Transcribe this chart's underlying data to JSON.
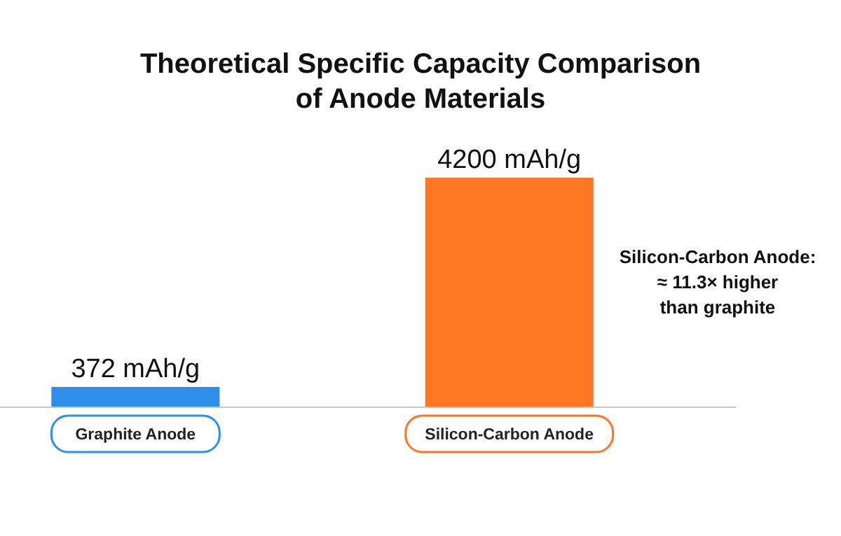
{
  "chart_data": {
    "type": "bar",
    "title": "Theoretical Specific Capacity Comparison\nof Anode Materials",
    "categories": [
      "Graphite Anode",
      "Silicon-Carbon Anode"
    ],
    "values": [
      372,
      4200
    ],
    "value_labels": [
      "372 mAh/g",
      "4200 mAh/g"
    ],
    "colors": [
      "#2f8fe8",
      "#ff7722"
    ],
    "annotations": [
      "Silicon-Carbon Anode:\n≈ 11.3× higher\nthan graphite"
    ]
  }
}
